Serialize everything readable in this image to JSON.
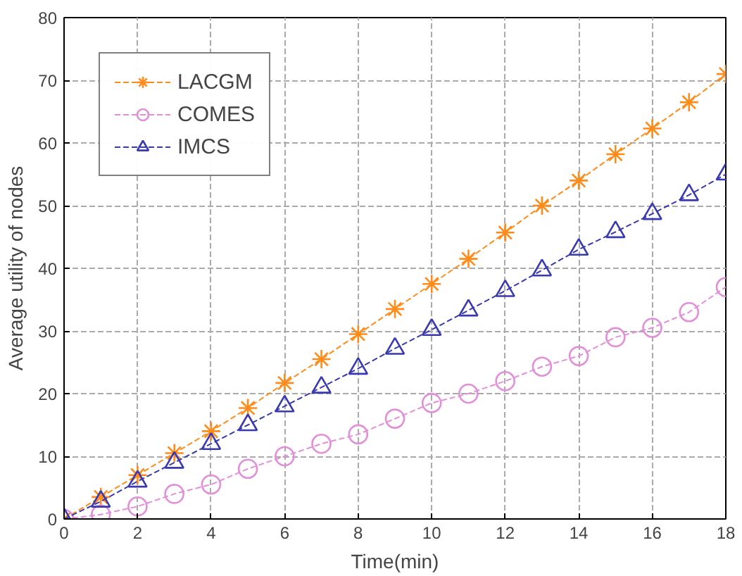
{
  "chart_data": {
    "type": "line",
    "xlabel": "Time(min)",
    "ylabel": "Average utility of nodes",
    "x": [
      0,
      1,
      2,
      3,
      4,
      5,
      6,
      7,
      8,
      9,
      10,
      11,
      12,
      13,
      14,
      15,
      16,
      17,
      18
    ],
    "series": [
      {
        "name": "LACGM",
        "color": "#ff8c1a",
        "marker": "cross",
        "values": [
          0,
          3.5,
          7,
          10.5,
          14,
          17.7,
          21.7,
          25.5,
          29.5,
          33.5,
          37.5,
          41.5,
          45.7,
          50,
          54,
          58.2,
          62.3,
          66.5,
          71
        ]
      },
      {
        "name": "COMES",
        "color": "#e38fd8",
        "marker": "circle",
        "values": [
          0,
          0.7,
          2,
          4,
          5.5,
          8,
          10,
          12,
          13.5,
          16,
          18.5,
          20,
          22,
          24.3,
          26,
          29,
          30.5,
          33,
          37
        ]
      },
      {
        "name": "IMCS",
        "color": "#3a3ab0",
        "marker": "triangle",
        "values": [
          0,
          2.8,
          6,
          9,
          12,
          15,
          18,
          21,
          24,
          27.2,
          30.2,
          33.3,
          36.4,
          39.7,
          43,
          45.8,
          48.7,
          51.7,
          55
        ]
      }
    ],
    "xlim": [
      0,
      18
    ],
    "ylim": [
      0,
      80
    ],
    "xticks": [
      0,
      2,
      4,
      6,
      8,
      10,
      12,
      14,
      16,
      18
    ],
    "yticks": [
      0,
      10,
      20,
      30,
      40,
      50,
      60,
      70,
      80
    ],
    "grid": true,
    "legend": "top left",
    "line_style": "dashed"
  }
}
